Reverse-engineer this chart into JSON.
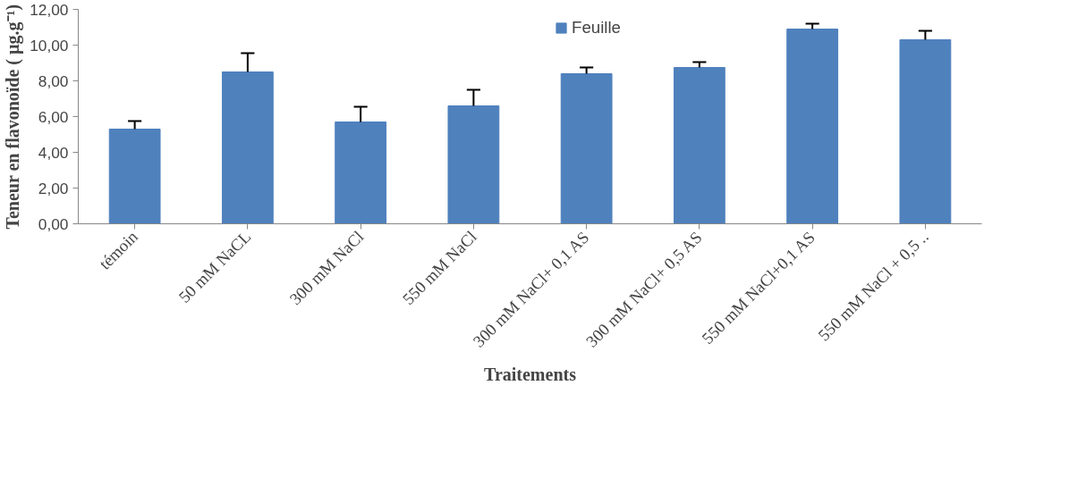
{
  "chart_data": {
    "type": "bar",
    "xlabel": "Traitements",
    "ylabel": "Teneur en flavonoïde ( µg.g⁻¹)",
    "categories": [
      "témoin",
      "50 mM NaCL",
      "300 mM NaCl",
      "550 mM NaCl",
      "300 mM NaCl+ 0,1 AS",
      "300 mM NaCl+ 0,5 AS",
      "550 mM NaCl+0,1 AS",
      "550 mM NaCl + 0,5 .."
    ],
    "series": [
      {
        "name": "Feuille",
        "color": "#4f81bd",
        "values": [
          5.3,
          8.5,
          5.7,
          6.6,
          8.4,
          8.75,
          10.9,
          10.3
        ],
        "errors": [
          [
            5.3,
            5.75
          ],
          [
            8.5,
            9.55
          ],
          [
            5.7,
            6.55
          ],
          [
            6.6,
            7.5
          ],
          [
            8.4,
            8.75
          ],
          [
            8.75,
            9.05
          ],
          [
            10.9,
            11.2
          ],
          [
            10.3,
            10.8
          ]
        ]
      }
    ],
    "ylim": [
      0,
      12
    ],
    "yticks": [
      {
        "value": 0,
        "label": "0,00"
      },
      {
        "value": 2,
        "label": "2,00"
      },
      {
        "value": 4,
        "label": "4,00"
      },
      {
        "value": 6,
        "label": "6,00"
      },
      {
        "value": 8,
        "label": "8,00"
      },
      {
        "value": 10,
        "label": "10,00"
      },
      {
        "value": 12,
        "label": "12,00"
      }
    ],
    "grid": false,
    "legend": "top"
  }
}
